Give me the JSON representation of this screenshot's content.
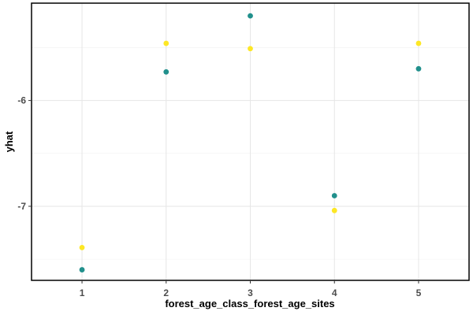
{
  "chart_data": {
    "type": "scatter",
    "title": "",
    "xlabel": "forest_age_class_forest_age_sites",
    "ylabel": "yhat",
    "x": [
      1,
      2,
      3,
      4,
      5
    ],
    "x_ticks": [
      "1",
      "2",
      "3",
      "4",
      "5"
    ],
    "y_ticks": [
      -7,
      -6
    ],
    "y_tick_labels": [
      "-7",
      "-6"
    ],
    "xlim": [
      0.4,
      5.6
    ],
    "ylim": [
      -7.7,
      -5.08
    ],
    "grid": true,
    "legend": "none",
    "series": [
      {
        "color": "#21908C",
        "values": [
          -7.6,
          -5.73,
          -5.2,
          -6.9,
          -5.7
        ]
      },
      {
        "color": "#FDE725",
        "values": [
          -7.39,
          -5.46,
          -5.51,
          -7.04,
          -5.46
        ]
      }
    ]
  }
}
